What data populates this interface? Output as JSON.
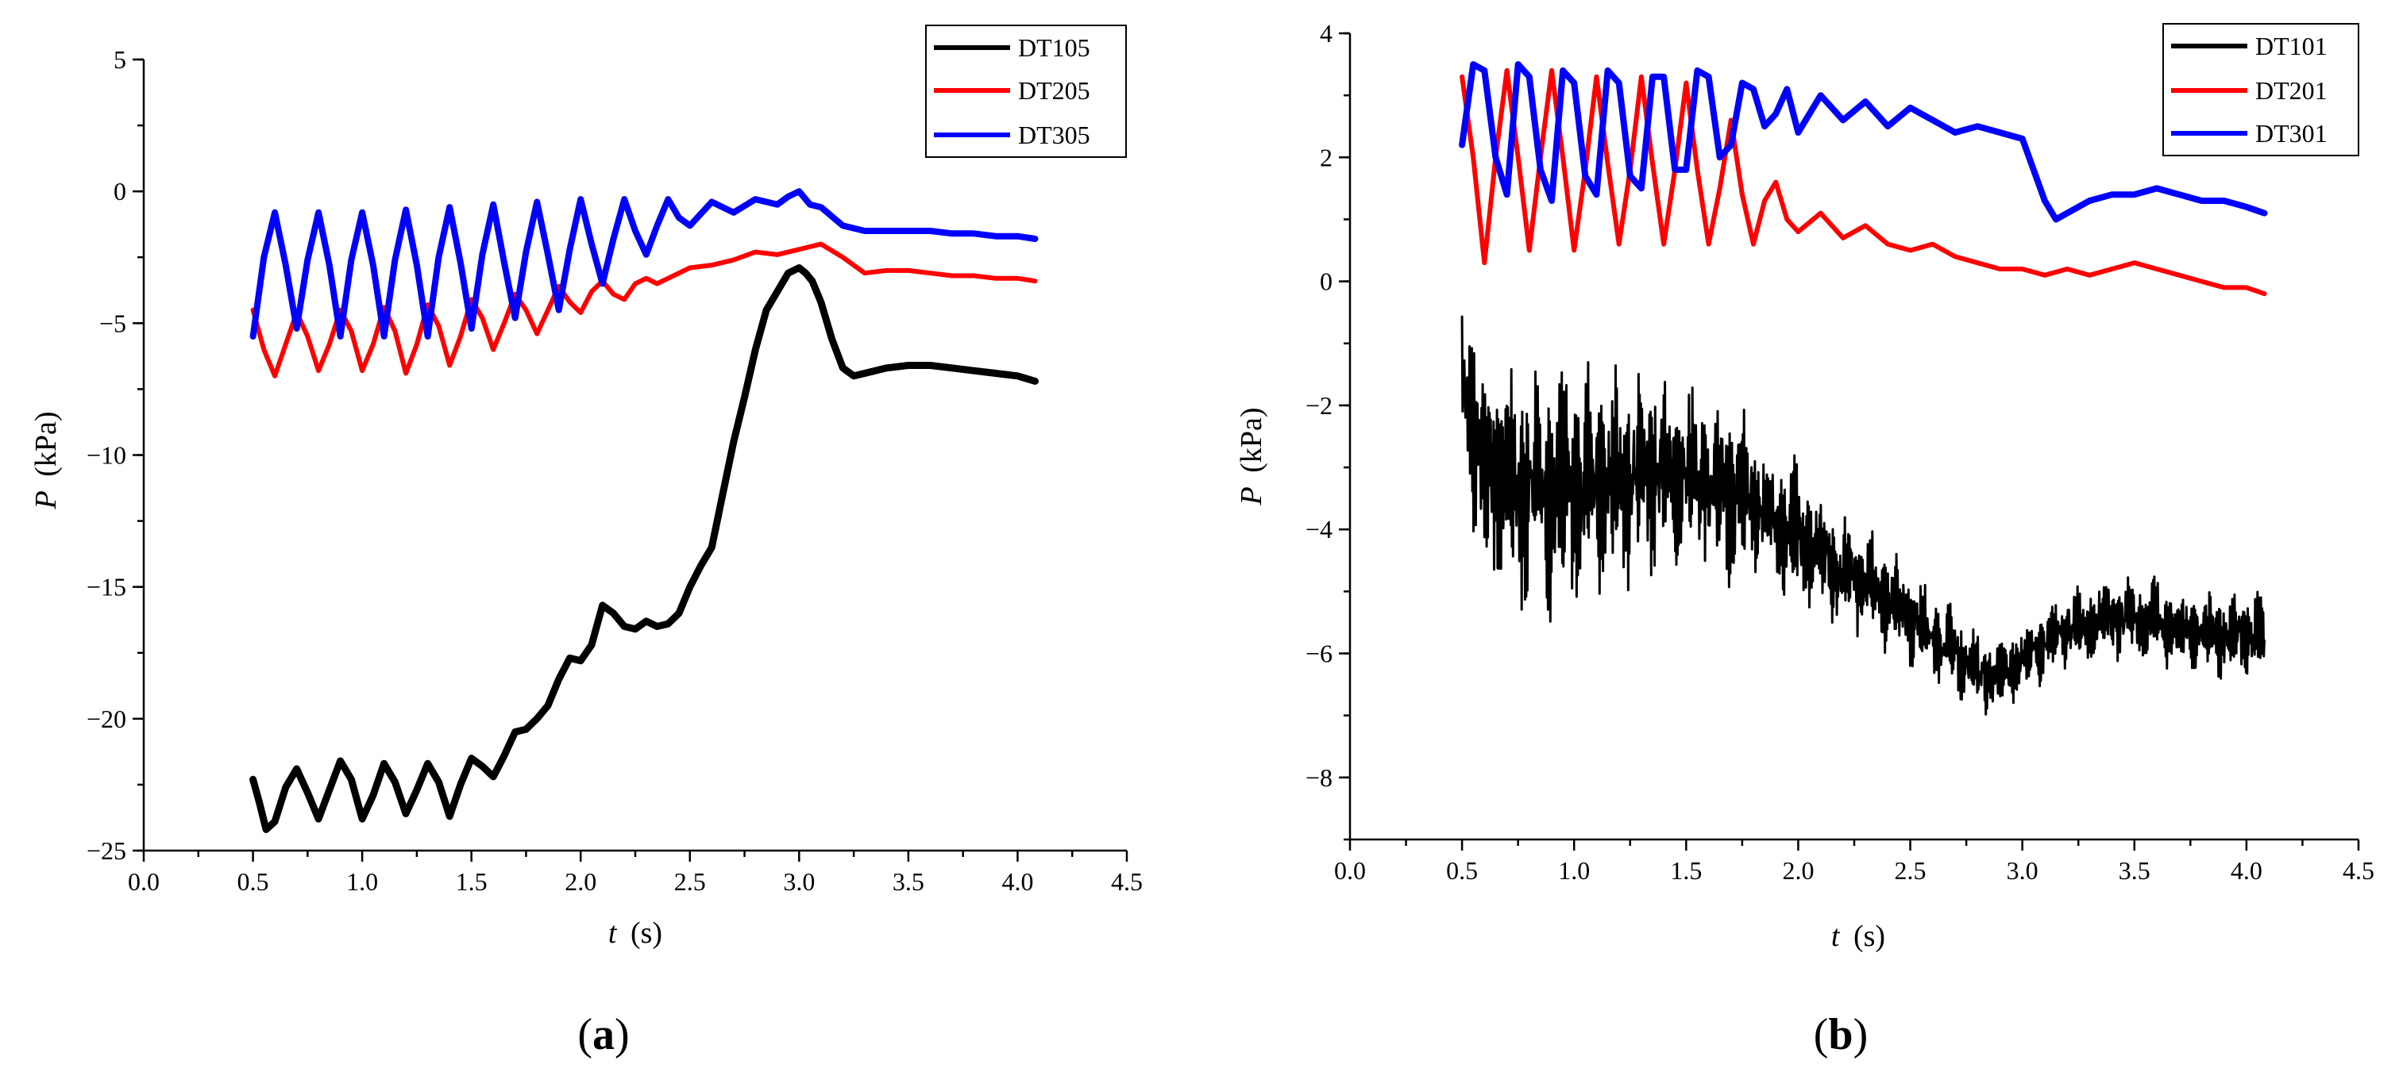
{
  "chart_data": [
    {
      "type": "line",
      "panel_label": "a",
      "xlabel": "t",
      "xlabel_unit": "(s)",
      "ylabel": "P",
      "ylabel_unit": "(kPa)",
      "xlim": [
        0.0,
        4.5
      ],
      "ylim": [
        -25,
        5
      ],
      "xticks": [
        "0.0",
        "0.5",
        "1.0",
        "1.5",
        "2.0",
        "2.5",
        "3.0",
        "3.5",
        "4.0",
        "4.5"
      ],
      "yticks": [
        "5",
        "0",
        "-5",
        "-10",
        "-15",
        "-20",
        "-25"
      ],
      "ytick_values": [
        5,
        0,
        -5,
        -10,
        -15,
        -20,
        -25
      ],
      "legend_position": "top-right",
      "series": [
        {
          "name": "DT105",
          "color": "#000000",
          "x": [
            0.5,
            0.53,
            0.56,
            0.6,
            0.65,
            0.7,
            0.75,
            0.8,
            0.85,
            0.9,
            0.95,
            1.0,
            1.05,
            1.1,
            1.15,
            1.2,
            1.25,
            1.3,
            1.35,
            1.4,
            1.45,
            1.5,
            1.55,
            1.6,
            1.65,
            1.7,
            1.75,
            1.8,
            1.85,
            1.9,
            1.95,
            2.0,
            2.05,
            2.1,
            2.15,
            2.2,
            2.25,
            2.3,
            2.35,
            2.4,
            2.45,
            2.5,
            2.55,
            2.6,
            2.65,
            2.7,
            2.75,
            2.8,
            2.85,
            2.9,
            2.95,
            3.0,
            3.03,
            3.06,
            3.1,
            3.15,
            3.2,
            3.25,
            3.3,
            3.4,
            3.5,
            3.6,
            3.7,
            3.8,
            3.9,
            4.0,
            4.08
          ],
          "y": [
            -22.3,
            -23.2,
            -24.2,
            -23.9,
            -22.6,
            -21.9,
            -22.8,
            -23.8,
            -22.7,
            -21.6,
            -22.3,
            -23.8,
            -22.9,
            -21.7,
            -22.4,
            -23.6,
            -22.7,
            -21.7,
            -22.4,
            -23.7,
            -22.5,
            -21.5,
            -21.8,
            -22.2,
            -21.4,
            -20.5,
            -20.4,
            -20.0,
            -19.5,
            -18.5,
            -17.7,
            -17.8,
            -17.2,
            -15.7,
            -16.0,
            -16.5,
            -16.6,
            -16.3,
            -16.5,
            -16.4,
            -16.0,
            -15.0,
            -14.2,
            -13.5,
            -11.5,
            -9.5,
            -7.8,
            -6.0,
            -4.5,
            -3.8,
            -3.1,
            -2.9,
            -3.1,
            -3.4,
            -4.2,
            -5.6,
            -6.7,
            -7.0,
            -6.9,
            -6.7,
            -6.6,
            -6.6,
            -6.7,
            -6.8,
            -6.9,
            -7.0,
            -7.2
          ]
        },
        {
          "name": "DT205",
          "color": "#ff0000",
          "x": [
            0.5,
            0.55,
            0.6,
            0.65,
            0.7,
            0.75,
            0.8,
            0.85,
            0.9,
            0.95,
            1.0,
            1.05,
            1.1,
            1.15,
            1.2,
            1.25,
            1.3,
            1.35,
            1.4,
            1.45,
            1.5,
            1.55,
            1.6,
            1.65,
            1.7,
            1.75,
            1.8,
            1.85,
            1.9,
            1.95,
            2.0,
            2.05,
            2.1,
            2.15,
            2.2,
            2.25,
            2.3,
            2.35,
            2.4,
            2.5,
            2.6,
            2.7,
            2.8,
            2.9,
            3.0,
            3.1,
            3.2,
            3.3,
            3.4,
            3.5,
            3.6,
            3.7,
            3.8,
            3.9,
            4.0,
            4.08
          ],
          "y": [
            -4.5,
            -6.0,
            -7.0,
            -5.8,
            -4.6,
            -5.5,
            -6.8,
            -5.8,
            -4.5,
            -5.3,
            -6.8,
            -5.8,
            -4.4,
            -5.3,
            -6.9,
            -5.8,
            -4.3,
            -5.1,
            -6.6,
            -5.5,
            -4.1,
            -4.8,
            -6.0,
            -5.0,
            -3.9,
            -4.5,
            -5.4,
            -4.5,
            -3.6,
            -4.2,
            -4.6,
            -3.8,
            -3.4,
            -3.9,
            -4.1,
            -3.5,
            -3.3,
            -3.5,
            -3.3,
            -2.9,
            -2.8,
            -2.6,
            -2.3,
            -2.4,
            -2.2,
            -2.0,
            -2.5,
            -3.1,
            -3.0,
            -3.0,
            -3.1,
            -3.2,
            -3.2,
            -3.3,
            -3.3,
            -3.4
          ]
        },
        {
          "name": "DT305",
          "color": "#0000ff",
          "x": [
            0.5,
            0.55,
            0.6,
            0.65,
            0.7,
            0.75,
            0.8,
            0.85,
            0.9,
            0.95,
            1.0,
            1.05,
            1.1,
            1.15,
            1.2,
            1.25,
            1.3,
            1.35,
            1.4,
            1.45,
            1.5,
            1.55,
            1.6,
            1.65,
            1.7,
            1.75,
            1.8,
            1.85,
            1.9,
            1.95,
            2.0,
            2.05,
            2.1,
            2.15,
            2.2,
            2.25,
            2.3,
            2.35,
            2.4,
            2.45,
            2.5,
            2.6,
            2.7,
            2.8,
            2.9,
            2.95,
            3.0,
            3.05,
            3.1,
            3.2,
            3.3,
            3.4,
            3.5,
            3.6,
            3.7,
            3.8,
            3.9,
            4.0,
            4.08
          ],
          "y": [
            -5.5,
            -2.5,
            -0.8,
            -2.8,
            -5.2,
            -2.6,
            -0.8,
            -2.8,
            -5.5,
            -2.6,
            -0.8,
            -2.8,
            -5.5,
            -2.6,
            -0.7,
            -2.8,
            -5.5,
            -2.5,
            -0.6,
            -2.7,
            -5.2,
            -2.4,
            -0.5,
            -2.7,
            -4.8,
            -2.3,
            -0.4,
            -2.4,
            -4.5,
            -2.2,
            -0.3,
            -2.0,
            -3.5,
            -1.8,
            -0.3,
            -1.5,
            -2.4,
            -1.3,
            -0.3,
            -1.0,
            -1.3,
            -0.4,
            -0.8,
            -0.3,
            -0.5,
            -0.2,
            0.0,
            -0.5,
            -0.6,
            -1.3,
            -1.5,
            -1.5,
            -1.5,
            -1.5,
            -1.6,
            -1.6,
            -1.7,
            -1.7,
            -1.8
          ]
        }
      ]
    },
    {
      "type": "line",
      "panel_label": "b",
      "xlabel": "t",
      "xlabel_unit": "(s)",
      "ylabel": "P",
      "ylabel_unit": "(kPa)",
      "xlim": [
        0.0,
        4.5
      ],
      "ylim": [
        -9,
        4
      ],
      "xticks": [
        "0.0",
        "0.5",
        "1.0",
        "1.5",
        "2.0",
        "2.5",
        "3.0",
        "3.5",
        "4.0",
        "4.5"
      ],
      "yticks": [
        "4",
        "2",
        "0",
        "-2",
        "-4",
        "-6",
        "-8"
      ],
      "ytick_values": [
        4,
        2,
        0,
        -2,
        -4,
        -6,
        -8
      ],
      "legend_position": "top-right",
      "series": [
        {
          "name": "DT101",
          "color": "#000000",
          "style": "noisy",
          "x": [
            0.5,
            0.6,
            0.8,
            1.0,
            1.2,
            1.4,
            1.6,
            1.8,
            2.0,
            2.2,
            2.4,
            2.6,
            2.8,
            2.9,
            3.0,
            3.2,
            3.4,
            3.6,
            3.8,
            4.0,
            4.08
          ],
          "y": [
            -1.5,
            -3.0,
            -3.3,
            -3.3,
            -3.2,
            -3.0,
            -3.2,
            -3.6,
            -4.1,
            -4.7,
            -5.1,
            -5.7,
            -6.3,
            -6.4,
            -6.1,
            -5.6,
            -5.4,
            -5.5,
            -5.7,
            -5.7,
            -5.8
          ],
          "amplitude": [
            2.8,
            3.5,
            3.5,
            3.3,
            3.1,
            2.8,
            2.6,
            2.2,
            1.9,
            1.6,
            1.4,
            1.2,
            1.1,
            1.0,
            1.0,
            1.0,
            1.1,
            1.2,
            1.2,
            1.2,
            1.2
          ]
        },
        {
          "name": "DT201",
          "color": "#ff0000",
          "x": [
            0.5,
            0.55,
            0.6,
            0.65,
            0.7,
            0.75,
            0.8,
            0.85,
            0.9,
            0.95,
            1.0,
            1.05,
            1.1,
            1.15,
            1.2,
            1.25,
            1.3,
            1.35,
            1.4,
            1.45,
            1.5,
            1.55,
            1.6,
            1.65,
            1.7,
            1.75,
            1.8,
            1.85,
            1.9,
            1.95,
            2.0,
            2.1,
            2.2,
            2.3,
            2.4,
            2.5,
            2.6,
            2.7,
            2.8,
            2.9,
            3.0,
            3.1,
            3.2,
            3.3,
            3.4,
            3.5,
            3.6,
            3.7,
            3.8,
            3.9,
            4.0,
            4.08
          ],
          "y": [
            3.3,
            2.0,
            0.3,
            2.0,
            3.4,
            2.0,
            0.5,
            2.0,
            3.4,
            2.0,
            0.5,
            1.8,
            3.3,
            1.9,
            0.6,
            1.8,
            3.3,
            1.9,
            0.6,
            1.8,
            3.2,
            1.8,
            0.6,
            1.5,
            2.6,
            1.4,
            0.6,
            1.3,
            1.6,
            1.0,
            0.8,
            1.1,
            0.7,
            0.9,
            0.6,
            0.5,
            0.6,
            0.4,
            0.3,
            0.2,
            0.2,
            0.1,
            0.2,
            0.1,
            0.2,
            0.3,
            0.2,
            0.1,
            0.0,
            -0.1,
            -0.1,
            -0.2
          ]
        },
        {
          "name": "DT301",
          "color": "#0000ff",
          "x": [
            0.5,
            0.55,
            0.6,
            0.65,
            0.7,
            0.75,
            0.8,
            0.85,
            0.9,
            0.95,
            1.0,
            1.05,
            1.1,
            1.15,
            1.2,
            1.25,
            1.3,
            1.35,
            1.4,
            1.45,
            1.5,
            1.55,
            1.6,
            1.65,
            1.7,
            1.75,
            1.8,
            1.85,
            1.9,
            1.95,
            2.0,
            2.1,
            2.2,
            2.3,
            2.4,
            2.5,
            2.6,
            2.7,
            2.8,
            2.9,
            3.0,
            3.05,
            3.1,
            3.15,
            3.2,
            3.3,
            3.4,
            3.5,
            3.6,
            3.7,
            3.8,
            3.9,
            4.0,
            4.08
          ],
          "y": [
            2.2,
            3.5,
            3.4,
            2.0,
            1.4,
            3.5,
            3.3,
            1.8,
            1.3,
            3.4,
            3.2,
            1.7,
            1.4,
            3.4,
            3.2,
            1.7,
            1.5,
            3.3,
            3.3,
            1.8,
            1.8,
            3.4,
            3.3,
            2.0,
            2.2,
            3.2,
            3.1,
            2.5,
            2.7,
            3.1,
            2.4,
            3.0,
            2.6,
            2.9,
            2.5,
            2.8,
            2.6,
            2.4,
            2.5,
            2.4,
            2.3,
            1.8,
            1.3,
            1.0,
            1.1,
            1.3,
            1.4,
            1.4,
            1.5,
            1.4,
            1.3,
            1.3,
            1.2,
            1.1
          ]
        }
      ]
    }
  ]
}
